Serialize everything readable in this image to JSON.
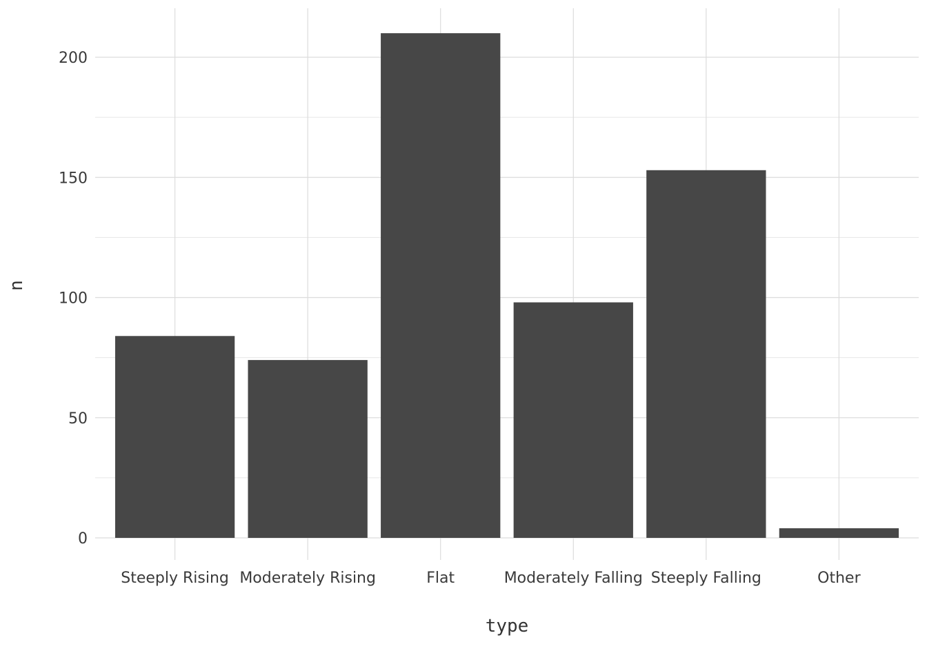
{
  "chart_data": {
    "type": "bar",
    "title": "",
    "xlabel": "type",
    "ylabel": "n",
    "categories": [
      "Steeply Rising",
      "Moderately Rising",
      "Flat",
      "Moderately Falling",
      "Steeply Falling",
      "Other"
    ],
    "values": [
      84,
      74,
      210,
      98,
      153,
      4
    ],
    "ylim": [
      0,
      220
    ],
    "y_ticks": [
      0,
      50,
      100,
      150,
      200
    ],
    "grid": true,
    "legend": "none",
    "colors": {
      "bar": "#474747",
      "grid": "#dcdcdc",
      "background": "#ffffff"
    }
  }
}
